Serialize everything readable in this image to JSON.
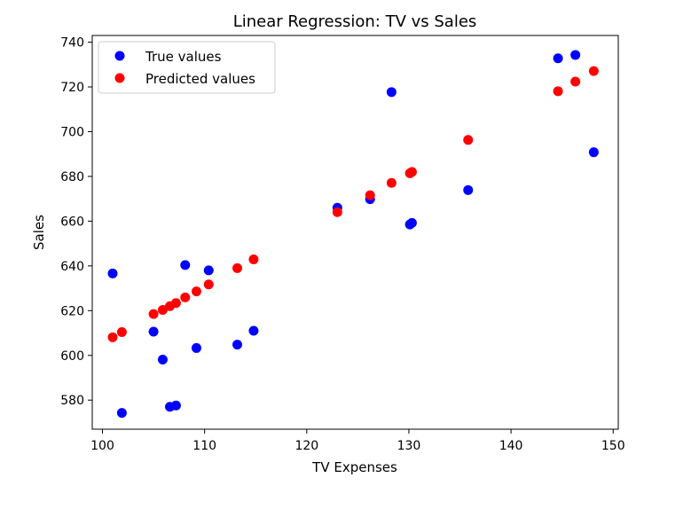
{
  "chart_data": {
    "type": "scatter",
    "title": "Linear Regression: TV vs Sales",
    "xlabel": "TV Expenses",
    "ylabel": "Sales",
    "xlim": [
      99,
      150.5
    ],
    "ylim": [
      567,
      743
    ],
    "xticks": [
      100,
      110,
      120,
      130,
      140,
      150
    ],
    "yticks": [
      580,
      600,
      620,
      640,
      660,
      680,
      700,
      720,
      740
    ],
    "grid": false,
    "legend": "top-left",
    "series": [
      {
        "name": "True values",
        "color": "#0000ff",
        "x": [
          101.0,
          101.9,
          105.0,
          105.9,
          106.6,
          107.2,
          108.1,
          109.2,
          110.4,
          113.2,
          114.8,
          123.0,
          126.2,
          128.3,
          130.1,
          130.3,
          135.8,
          144.6,
          146.3,
          148.1
        ],
        "y": [
          636.6,
          574.3,
          610.6,
          598.1,
          577.0,
          577.6,
          640.4,
          603.3,
          638.0,
          604.8,
          611.0,
          666.0,
          669.8,
          717.7,
          658.5,
          659.2,
          673.9,
          732.8,
          734.3,
          690.8
        ]
      },
      {
        "name": "Predicted values",
        "color": "#ff0000",
        "x": [
          101.0,
          101.9,
          105.0,
          105.9,
          106.6,
          107.2,
          108.1,
          109.2,
          110.4,
          113.2,
          114.8,
          123.0,
          126.2,
          128.3,
          130.1,
          130.3,
          135.8,
          144.6,
          146.3,
          148.1
        ],
        "y": [
          608.1,
          610.4,
          618.5,
          620.3,
          622.0,
          623.4,
          625.9,
          628.6,
          631.7,
          639.0,
          642.9,
          664.0,
          671.6,
          677.1,
          681.4,
          682.0,
          696.3,
          718.1,
          722.4,
          727.1
        ]
      }
    ]
  }
}
